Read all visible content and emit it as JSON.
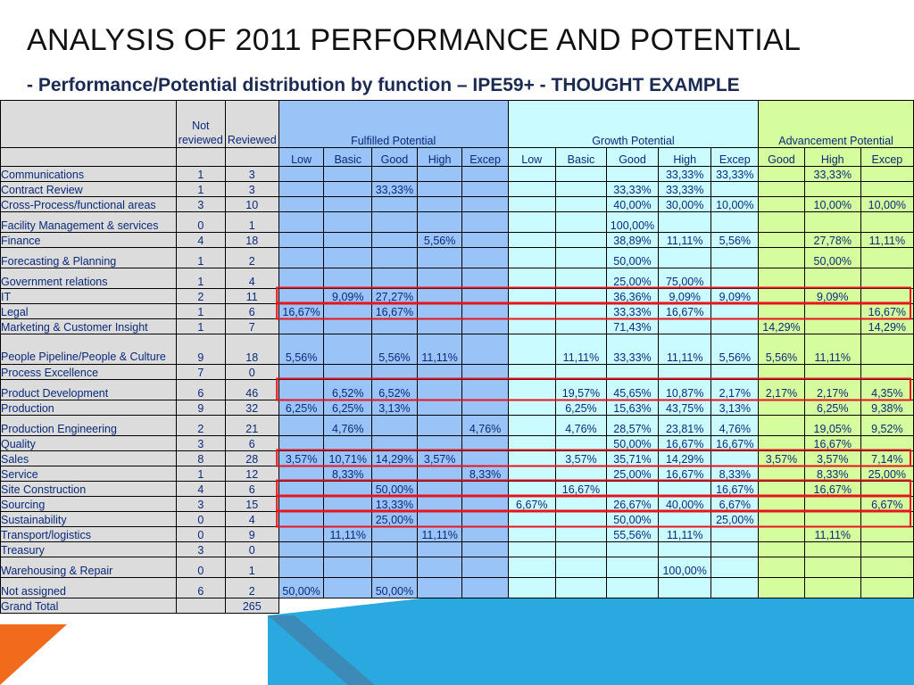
{
  "title": "ANALYSIS OF 2011 PERFORMANCE AND POTENTIAL",
  "subtitle": "- Performance/Potential distribution by function – IPE59+ - THOUGHT EXAMPLE",
  "colors": {
    "header_gray": "#dcdcdc",
    "fulfilled_blue": "#9ac3f7",
    "growth_cyan": "#c9fbff",
    "advancement_green": "#d5fd9e",
    "highlight_red": "#e8141c",
    "deco_blue": "#29a9e0",
    "deco_orange": "#f26b1d"
  },
  "table": {
    "header": {
      "not_reviewed": "Not reviewed",
      "reviewed": "Reviewed",
      "groups": [
        "Fulfilled Potential",
        "Growth Potential",
        "Advancement Potential"
      ],
      "subcols": [
        "Low",
        "Basic",
        "Good",
        "High",
        "Excep",
        "Low",
        "Basic",
        "Good",
        "High",
        "Excep",
        "Good",
        "High",
        "Excep"
      ]
    },
    "rows": [
      {
        "name": "Communications",
        "nr": "1",
        "r": "3",
        "c": [
          "",
          "",
          "",
          "",
          "",
          "",
          "",
          "",
          "33,33%",
          "33,33%",
          "",
          "33,33%",
          ""
        ]
      },
      {
        "name": "Contract Review",
        "nr": "1",
        "r": "3",
        "c": [
          "",
          "",
          "33,33%",
          "",
          "",
          "",
          "",
          "33,33%",
          "33,33%",
          "",
          "",
          "",
          ""
        ]
      },
      {
        "name": "Cross-Process/functional areas",
        "nr": "3",
        "r": "10",
        "c": [
          "",
          "",
          "",
          "",
          "",
          "",
          "",
          "40,00%",
          "30,00%",
          "10,00%",
          "",
          "10,00%",
          "10,00%"
        ]
      },
      {
        "name": "Facility Management & services",
        "nr": "0",
        "r": "1",
        "c": [
          "",
          "",
          "",
          "",
          "",
          "",
          "",
          "100,00%",
          "",
          "",
          "",
          "",
          ""
        ]
      },
      {
        "name": "Finance",
        "nr": "4",
        "r": "18",
        "c": [
          "",
          "",
          "",
          "5,56%",
          "",
          "",
          "",
          "38,89%",
          "11,11%",
          "5,56%",
          "",
          "27,78%",
          "11,11%"
        ]
      },
      {
        "name": "Forecasting & Planning",
        "nr": "1",
        "r": "2",
        "c": [
          "",
          "",
          "",
          "",
          "",
          "",
          "",
          "50,00%",
          "",
          "",
          "",
          "50,00%",
          ""
        ]
      },
      {
        "name": "Government relations",
        "nr": "1",
        "r": "4",
        "c": [
          "",
          "",
          "",
          "",
          "",
          "",
          "",
          "25,00%",
          "75,00%",
          "",
          "",
          "",
          ""
        ]
      },
      {
        "name": "IT",
        "nr": "2",
        "r": "11",
        "c": [
          "",
          "9,09%",
          "27,27%",
          "",
          "",
          "",
          "",
          "36,36%",
          "9,09%",
          "9,09%",
          "",
          "9,09%",
          ""
        ]
      },
      {
        "name": "Legal",
        "nr": "1",
        "r": "6",
        "c": [
          "16,67%",
          "",
          "16,67%",
          "",
          "",
          "",
          "",
          "33,33%",
          "16,67%",
          "",
          "",
          "",
          "16,67%"
        ]
      },
      {
        "name": "Marketing & Customer Insight",
        "nr": "1",
        "r": "7",
        "c": [
          "",
          "",
          "",
          "",
          "",
          "",
          "",
          "71,43%",
          "",
          "",
          "14,29%",
          "",
          "14,29%"
        ]
      },
      {
        "name": "People Pipeline/People & Culture",
        "nr": "9",
        "r": "18",
        "c": [
          "5,56%",
          "",
          "5,56%",
          "11,11%",
          "",
          "",
          "11,11%",
          "33,33%",
          "11,11%",
          "5,56%",
          "5,56%",
          "11,11%",
          ""
        ]
      },
      {
        "name": "Process Excellence",
        "nr": "7",
        "r": "0",
        "c": [
          "",
          "",
          "",
          "",
          "",
          "",
          "",
          "",
          "",
          "",
          "",
          "",
          ""
        ]
      },
      {
        "name": "Product Development",
        "nr": "6",
        "r": "46",
        "c": [
          "",
          "6,52%",
          "6,52%",
          "",
          "",
          "",
          "19,57%",
          "45,65%",
          "10,87%",
          "2,17%",
          "2,17%",
          "2,17%",
          "4,35%"
        ]
      },
      {
        "name": "Production",
        "nr": "9",
        "r": "32",
        "c": [
          "6,25%",
          "6,25%",
          "3,13%",
          "",
          "",
          "",
          "6,25%",
          "15,63%",
          "43,75%",
          "3,13%",
          "",
          "6,25%",
          "9,38%"
        ]
      },
      {
        "name": "Production Engineering",
        "nr": "2",
        "r": "21",
        "c": [
          "",
          "4,76%",
          "",
          "",
          "4,76%",
          "",
          "4,76%",
          "28,57%",
          "23,81%",
          "4,76%",
          "",
          "19,05%",
          "9,52%"
        ]
      },
      {
        "name": "Quality",
        "nr": "3",
        "r": "6",
        "c": [
          "",
          "",
          "",
          "",
          "",
          "",
          "",
          "50,00%",
          "16,67%",
          "16,67%",
          "",
          "16,67%",
          ""
        ]
      },
      {
        "name": "Sales",
        "nr": "8",
        "r": "28",
        "c": [
          "3,57%",
          "10,71%",
          "14,29%",
          "3,57%",
          "",
          "",
          "3,57%",
          "35,71%",
          "14,29%",
          "",
          "3,57%",
          "3,57%",
          "7,14%"
        ]
      },
      {
        "name": "Service",
        "nr": "1",
        "r": "12",
        "c": [
          "",
          "8,33%",
          "",
          "",
          "8,33%",
          "",
          "",
          "25,00%",
          "16,67%",
          "8,33%",
          "",
          "8,33%",
          "25,00%"
        ]
      },
      {
        "name": "Site Construction",
        "nr": "4",
        "r": "6",
        "c": [
          "",
          "",
          "50,00%",
          "",
          "",
          "",
          "16,67%",
          "",
          "",
          "16,67%",
          "",
          "16,67%",
          ""
        ]
      },
      {
        "name": "Sourcing",
        "nr": "3",
        "r": "15",
        "c": [
          "",
          "",
          "13,33%",
          "",
          "",
          "6,67%",
          "",
          "26,67%",
          "40,00%",
          "6,67%",
          "",
          "",
          "6,67%"
        ]
      },
      {
        "name": "Sustainability",
        "nr": "0",
        "r": "4",
        "c": [
          "",
          "",
          "25,00%",
          "",
          "",
          "",
          "",
          "50,00%",
          "",
          "25,00%",
          "",
          "",
          ""
        ]
      },
      {
        "name": "Transport/logistics",
        "nr": "0",
        "r": "9",
        "c": [
          "",
          "11,11%",
          "",
          "11,11%",
          "",
          "",
          "",
          "55,56%",
          "11,11%",
          "",
          "",
          "11,11%",
          ""
        ]
      },
      {
        "name": "Treasury",
        "nr": "3",
        "r": "0",
        "c": [
          "",
          "",
          "",
          "",
          "",
          "",
          "",
          "",
          "",
          "",
          "",
          "",
          ""
        ]
      },
      {
        "name": "Warehousing & Repair",
        "nr": "0",
        "r": "1",
        "c": [
          "",
          "",
          "",
          "",
          "",
          "",
          "",
          "",
          "100,00%",
          "",
          "",
          "",
          ""
        ]
      },
      {
        "name": "Not assigned",
        "nr": "6",
        "r": "2",
        "c": [
          "50,00%",
          "",
          "50,00%",
          "",
          "",
          "",
          "",
          "",
          "",
          "",
          "",
          "",
          ""
        ]
      }
    ],
    "grand_total": {
      "name": "Grand Total",
      "nr": "",
      "r": "265"
    }
  }
}
